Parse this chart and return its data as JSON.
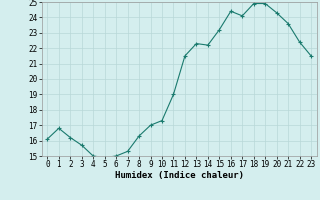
{
  "x": [
    0,
    1,
    2,
    3,
    4,
    5,
    6,
    7,
    8,
    9,
    10,
    11,
    12,
    13,
    14,
    15,
    16,
    17,
    18,
    19,
    20,
    21,
    22,
    23
  ],
  "y": [
    16.1,
    16.8,
    16.2,
    15.7,
    15.0,
    14.9,
    15.0,
    15.3,
    16.3,
    17.0,
    17.3,
    19.0,
    21.5,
    22.3,
    22.2,
    23.2,
    24.4,
    24.1,
    24.9,
    24.9,
    24.3,
    23.6,
    22.4,
    21.5
  ],
  "xlabel": "Humidex (Indice chaleur)",
  "xlim": [
    -0.5,
    23.5
  ],
  "ylim": [
    15,
    25
  ],
  "yticks": [
    15,
    16,
    17,
    18,
    19,
    20,
    21,
    22,
    23,
    24,
    25
  ],
  "xticks": [
    0,
    1,
    2,
    3,
    4,
    5,
    6,
    7,
    8,
    9,
    10,
    11,
    12,
    13,
    14,
    15,
    16,
    17,
    18,
    19,
    20,
    21,
    22,
    23
  ],
  "line_color": "#1a7a6e",
  "marker": "+",
  "bg_color": "#d4eeee",
  "grid_color": "#b8d8d8",
  "label_fontsize": 6.5,
  "tick_fontsize": 5.5
}
